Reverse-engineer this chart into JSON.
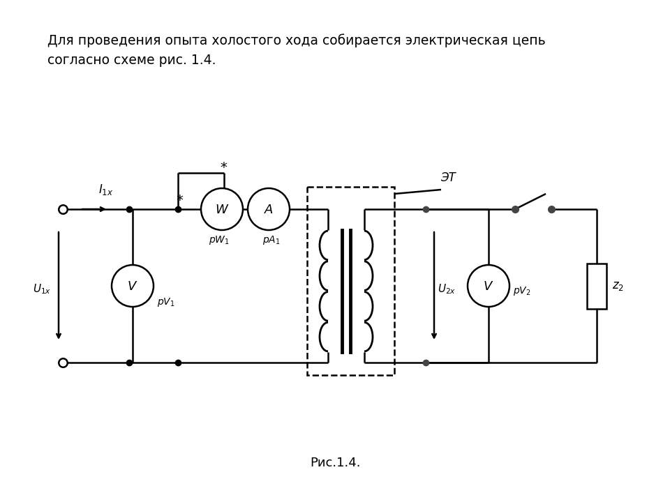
{
  "title_text": "Для проведения опыта холостого хода собирается электрическая цепь\nсогласно схеме рис. 1.4.",
  "caption": "Рис.1.4.",
  "background_color": "#ffffff",
  "line_color": "#000000",
  "lw": 1.8
}
